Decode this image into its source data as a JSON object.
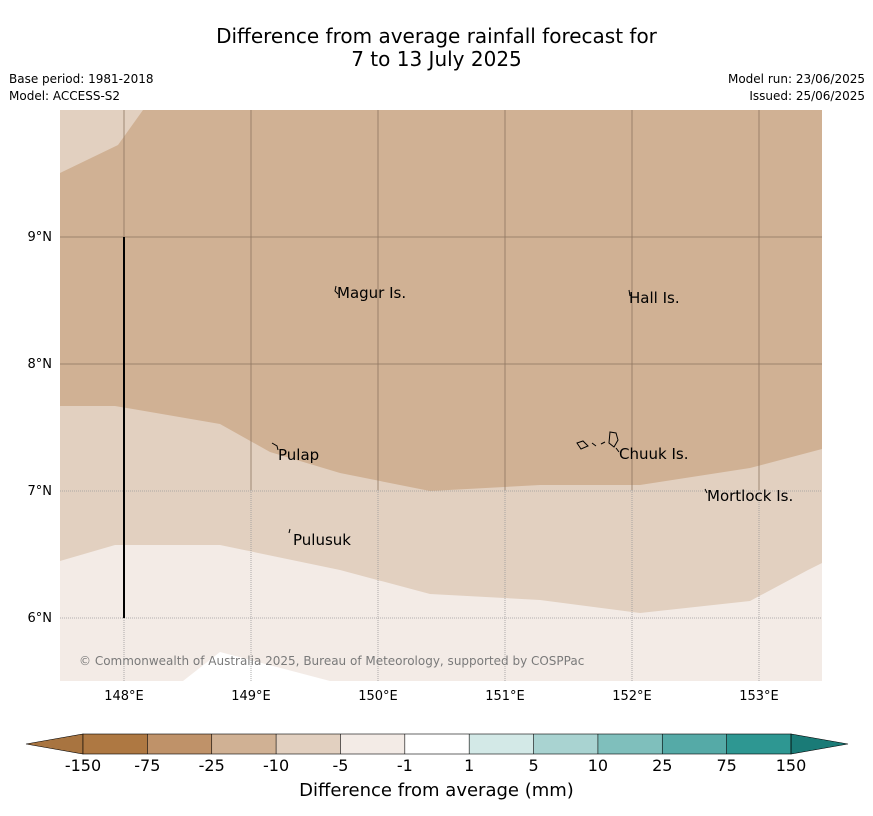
{
  "header": {
    "title_line1": "Difference from average rainfall forecast for",
    "title_line2": "7 to 13 July 2025",
    "base_period": "Base period: 1981-2018",
    "model": "Model: ACCESS-S2",
    "model_run": "Model run: 23/06/2025",
    "issued": "Issued: 25/06/2025"
  },
  "map": {
    "lat_labels": [
      "9°N",
      "8°N",
      "7°N",
      "6°N"
    ],
    "lon_labels": [
      "148°E",
      "149°E",
      "150°E",
      "151°E",
      "152°E",
      "153°E"
    ],
    "places": [
      "Magur Is.",
      "Hall Is.",
      "Pulap",
      "Chuuk Is.",
      "Mortlock Is.",
      "Pulusuk"
    ],
    "copyright": "© Commonwealth of Australia 2025, Bureau of Meteorology, supported by COSPPac"
  },
  "legend": {
    "title": "Difference from average (mm)",
    "tick_labels": [
      "-150",
      "-75",
      "-25",
      "-10",
      "-5",
      "-1",
      "1",
      "5",
      "10",
      "25",
      "75",
      "150"
    ],
    "colors": [
      "#a87440",
      "#ae7842",
      "#bf9269",
      "#d0b194",
      "#e2d0c0",
      "#f3ebe6",
      "#ffffff",
      "#d3e9e7",
      "#a9d3d1",
      "#7fbfbc",
      "#55aaa7",
      "#2e9792",
      "#1a7b77"
    ]
  }
}
